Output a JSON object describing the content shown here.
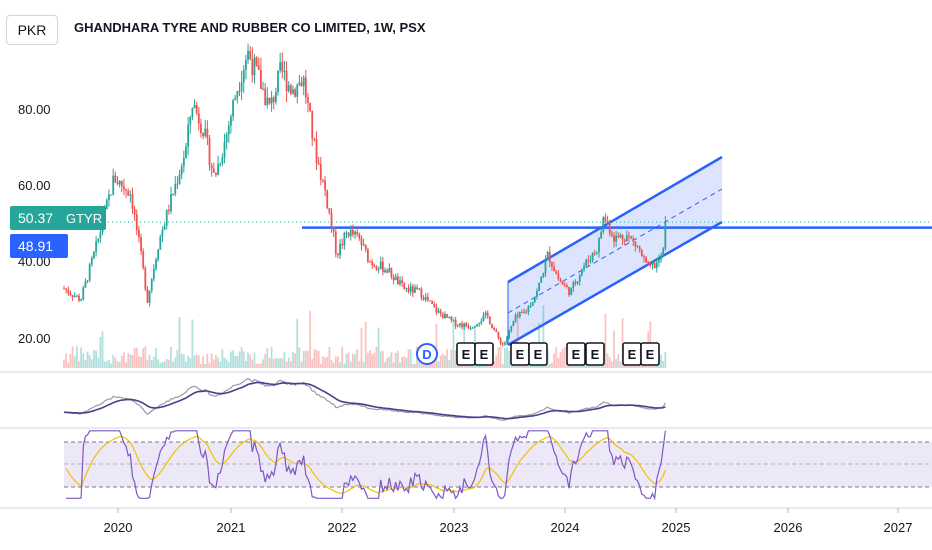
{
  "currency": "PKR",
  "title": "GHANDHARA TYRE AND RUBBER CO LIMITED, 1W, PSX",
  "last_price": "50.37",
  "symbol": "GTYR",
  "hline_price": "48.91",
  "colors": {
    "up": "#26a69a",
    "down": "#ef5350",
    "blue": "#2962ff",
    "channel_fill": "#c5d3fb",
    "osc_dark": "#4a3f8f",
    "osc_gray": "#9a9aa6",
    "rsi_line": "#7e57c2",
    "rsi_ma": "#f2c200",
    "rsi_band": "#ece8f7"
  },
  "chart_data": {
    "type": "candlestick",
    "interval": "1W",
    "y_ticks": [
      "20.00",
      "40.00",
      "60.00",
      "80.00"
    ],
    "x_ticks": [
      "2020",
      "2021",
      "2022",
      "2023",
      "2024",
      "2025",
      "2026",
      "2027"
    ],
    "ylim": [
      10,
      100
    ],
    "horizontal_line": 48.91,
    "last_close": 50.37,
    "events": [
      "D",
      "E",
      "E",
      "E",
      "E",
      "E",
      "E",
      "E",
      "E"
    ],
    "price_path": [
      [
        2019.5,
        33
      ],
      [
        2019.65,
        30
      ],
      [
        2019.8,
        45
      ],
      [
        2019.95,
        62
      ],
      [
        2020.1,
        58
      ],
      [
        2020.2,
        40
      ],
      [
        2020.25,
        30
      ],
      [
        2020.35,
        45
      ],
      [
        2020.5,
        60
      ],
      [
        2020.6,
        70
      ],
      [
        2020.65,
        82
      ],
      [
        2020.75,
        75
      ],
      [
        2020.85,
        62
      ],
      [
        2020.95,
        72
      ],
      [
        2021.05,
        85
      ],
      [
        2021.15,
        95
      ],
      [
        2021.25,
        88
      ],
      [
        2021.35,
        80
      ],
      [
        2021.45,
        90
      ],
      [
        2021.55,
        85
      ],
      [
        2021.65,
        88
      ],
      [
        2021.75,
        70
      ],
      [
        2021.85,
        58
      ],
      [
        2021.9,
        50
      ],
      [
        2021.95,
        42
      ],
      [
        2022.05,
        48
      ],
      [
        2022.15,
        46
      ],
      [
        2022.25,
        40
      ],
      [
        2022.4,
        38
      ],
      [
        2022.55,
        33
      ],
      [
        2022.7,
        32
      ],
      [
        2022.85,
        27
      ],
      [
        2023.0,
        24
      ],
      [
        2023.15,
        23
      ],
      [
        2023.3,
        26
      ],
      [
        2023.4,
        20
      ],
      [
        2023.45,
        18
      ],
      [
        2023.55,
        25
      ],
      [
        2023.65,
        27
      ],
      [
        2023.75,
        32
      ],
      [
        2023.85,
        42
      ],
      [
        2023.95,
        35
      ],
      [
        2024.05,
        32
      ],
      [
        2024.15,
        38
      ],
      [
        2024.3,
        44
      ],
      [
        2024.35,
        52
      ],
      [
        2024.45,
        46
      ],
      [
        2024.55,
        47
      ],
      [
        2024.65,
        44
      ],
      [
        2024.75,
        38
      ],
      [
        2024.85,
        40
      ],
      [
        2024.9,
        44
      ],
      [
        2024.92,
        50.37
      ]
    ],
    "oscillator_1": {
      "type": "line"
    },
    "oscillator_2": {
      "type": "rsi"
    }
  }
}
